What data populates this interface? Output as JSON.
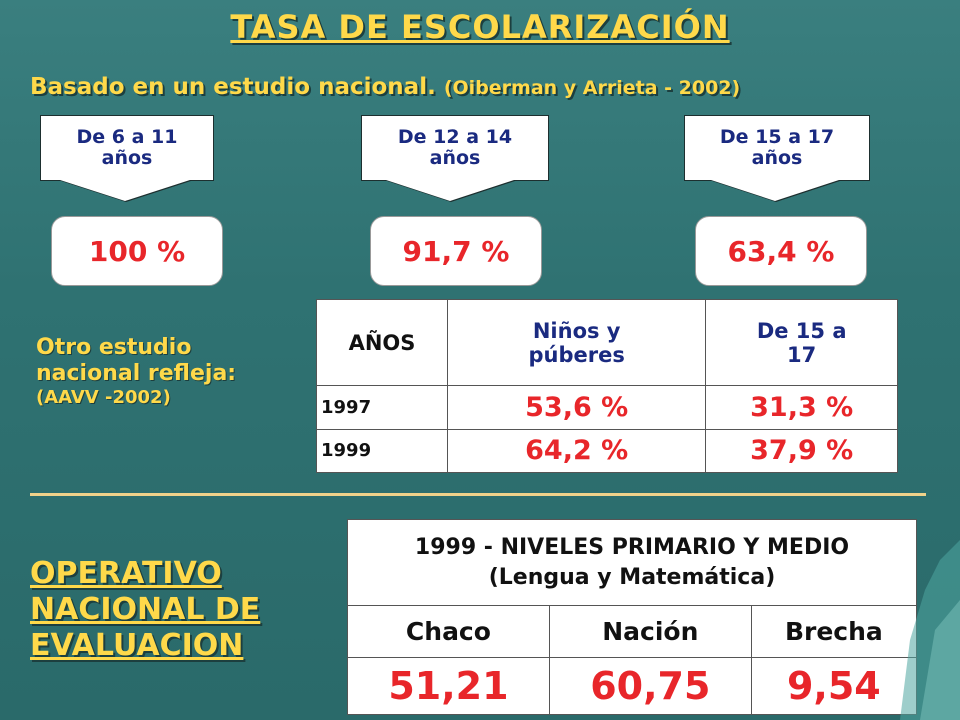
{
  "title": "TASA DE ESCOLARIZACIÓN",
  "subtitle": {
    "main": "Basado en un estudio nacional.",
    "reference": "(Oiberman y Arrieta - 2002)"
  },
  "age_groups": [
    {
      "label": "De 6 a 11 años",
      "value": "100 %"
    },
    {
      "label": "De 12 a 14 años",
      "value": "91,7 %"
    },
    {
      "label": "De 15 a 17 años",
      "value": "63,4 %"
    }
  ],
  "otro_estudio": {
    "text": "Otro estudio nacional refleja:",
    "reference": "(AAVV -2002)"
  },
  "table1": {
    "headers": [
      "AÑOS",
      "Niños y púberes",
      "De 15 a 17"
    ],
    "rows": [
      [
        "1997",
        "53,6 %",
        "31,3 %"
      ],
      [
        "1999",
        "64,2 %",
        "37,9 %"
      ]
    ]
  },
  "operativo": "OPERATIVO NACIONAL DE EVALUACION",
  "table2": {
    "caption": "1999 - NIVELES PRIMARIO Y MEDIO (Lengua y Matemática)",
    "headers": [
      "Chaco",
      "Nación",
      "Brecha"
    ],
    "values": [
      "51,21",
      "60,75",
      "9,54"
    ]
  },
  "colors": {
    "background": "#2f7272",
    "title": "#ffd94a",
    "value_red": "#e8262a",
    "label_blue": "#1a2a80"
  }
}
